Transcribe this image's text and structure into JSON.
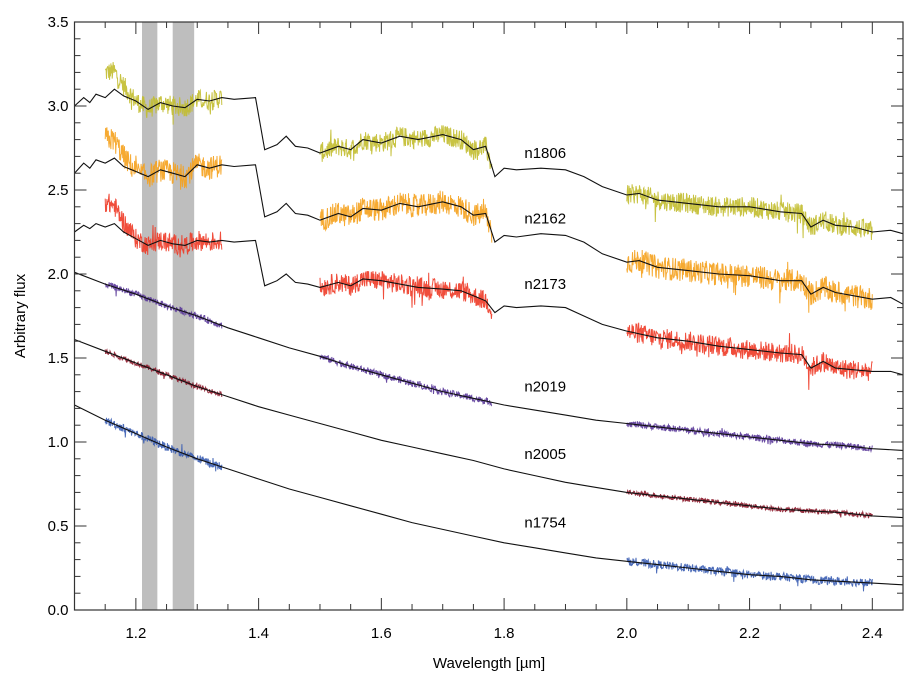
{
  "chart_data": {
    "type": "line",
    "title": "",
    "xlabel": "Wavelength [µm]",
    "ylabel": "Arbitrary flux",
    "xlim": [
      1.1,
      2.45
    ],
    "ylim": [
      0.0,
      3.5
    ],
    "grid": false,
    "legend": "inline-labels",
    "x_ticks": [
      {
        "value": 1.2,
        "label": "1.2"
      },
      {
        "value": 1.4,
        "label": "1.4"
      },
      {
        "value": 1.6,
        "label": "1.6"
      },
      {
        "value": 1.8,
        "label": "1.8"
      },
      {
        "value": 2.0,
        "label": "2.0"
      },
      {
        "value": 2.2,
        "label": "2.2"
      },
      {
        "value": 2.4,
        "label": "2.4"
      }
    ],
    "y_ticks": [
      {
        "value": 0.0,
        "label": "0.0"
      },
      {
        "value": 0.5,
        "label": "0.5"
      },
      {
        "value": 1.0,
        "label": "1.0"
      },
      {
        "value": 1.5,
        "label": "1.5"
      },
      {
        "value": 2.0,
        "label": "2.0"
      },
      {
        "value": 2.5,
        "label": "2.5"
      },
      {
        "value": 3.0,
        "label": "3.0"
      },
      {
        "value": 3.5,
        "label": "3.5"
      }
    ],
    "shaded_regions": [
      {
        "x_range": [
          1.21,
          1.235
        ],
        "color": "#bebebe"
      },
      {
        "x_range": [
          1.26,
          1.295
        ],
        "color": "#bebebe"
      }
    ],
    "series": [
      {
        "name": "n1806",
        "color": "#c2bd2e",
        "label_position": [
          1.82,
          2.72
        ],
        "noise": 0.06,
        "observed_ranges": [
          [
            1.15,
            1.34
          ],
          [
            1.5,
            1.78
          ],
          [
            2.0,
            2.4
          ]
        ],
        "model": [
          [
            1.1,
            3.0
          ],
          [
            1.115,
            3.05
          ],
          [
            1.125,
            3.02
          ],
          [
            1.135,
            3.07
          ],
          [
            1.15,
            3.05
          ],
          [
            1.165,
            3.1
          ],
          [
            1.18,
            3.06
          ],
          [
            1.2,
            3.03
          ],
          [
            1.22,
            2.98
          ],
          [
            1.24,
            3.02
          ],
          [
            1.26,
            3.0
          ],
          [
            1.28,
            2.99
          ],
          [
            1.3,
            3.04
          ],
          [
            1.32,
            3.03
          ],
          [
            1.34,
            3.05
          ],
          [
            1.36,
            3.04
          ],
          [
            1.395,
            3.05
          ],
          [
            1.41,
            2.74
          ],
          [
            1.43,
            2.77
          ],
          [
            1.445,
            2.82
          ],
          [
            1.46,
            2.76
          ],
          [
            1.48,
            2.75
          ],
          [
            1.5,
            2.72
          ],
          [
            1.53,
            2.76
          ],
          [
            1.55,
            2.74
          ],
          [
            1.57,
            2.8
          ],
          [
            1.6,
            2.78
          ],
          [
            1.63,
            2.82
          ],
          [
            1.66,
            2.8
          ],
          [
            1.7,
            2.83
          ],
          [
            1.73,
            2.8
          ],
          [
            1.75,
            2.74
          ],
          [
            1.77,
            2.76
          ],
          [
            1.785,
            2.58
          ],
          [
            1.8,
            2.63
          ],
          [
            1.82,
            2.62
          ],
          [
            1.86,
            2.63
          ],
          [
            1.9,
            2.62
          ],
          [
            1.93,
            2.58
          ],
          [
            1.96,
            2.52
          ],
          [
            2.0,
            2.47
          ],
          [
            2.02,
            2.48
          ],
          [
            2.05,
            2.44
          ],
          [
            2.1,
            2.42
          ],
          [
            2.15,
            2.4
          ],
          [
            2.2,
            2.4
          ],
          [
            2.25,
            2.37
          ],
          [
            2.285,
            2.36
          ],
          [
            2.3,
            2.28
          ],
          [
            2.32,
            2.32
          ],
          [
            2.34,
            2.29
          ],
          [
            2.37,
            2.28
          ],
          [
            2.4,
            2.25
          ],
          [
            2.43,
            2.26
          ],
          [
            2.45,
            2.24
          ]
        ]
      },
      {
        "name": "n2162",
        "color": "#f5a11c",
        "label_position": [
          1.82,
          2.33
        ],
        "noise": 0.07,
        "observed_ranges": [
          [
            1.15,
            1.34
          ],
          [
            1.5,
            1.78
          ],
          [
            2.0,
            2.4
          ]
        ],
        "model": [
          [
            1.1,
            2.6
          ],
          [
            1.115,
            2.66
          ],
          [
            1.125,
            2.63
          ],
          [
            1.135,
            2.68
          ],
          [
            1.15,
            2.66
          ],
          [
            1.165,
            2.69
          ],
          [
            1.18,
            2.64
          ],
          [
            1.2,
            2.61
          ],
          [
            1.22,
            2.58
          ],
          [
            1.24,
            2.62
          ],
          [
            1.26,
            2.6
          ],
          [
            1.28,
            2.58
          ],
          [
            1.3,
            2.65
          ],
          [
            1.32,
            2.63
          ],
          [
            1.34,
            2.65
          ],
          [
            1.36,
            2.64
          ],
          [
            1.395,
            2.65
          ],
          [
            1.41,
            2.34
          ],
          [
            1.43,
            2.37
          ],
          [
            1.445,
            2.42
          ],
          [
            1.46,
            2.36
          ],
          [
            1.48,
            2.35
          ],
          [
            1.5,
            2.32
          ],
          [
            1.53,
            2.36
          ],
          [
            1.55,
            2.34
          ],
          [
            1.57,
            2.39
          ],
          [
            1.6,
            2.38
          ],
          [
            1.63,
            2.42
          ],
          [
            1.66,
            2.4
          ],
          [
            1.7,
            2.43
          ],
          [
            1.73,
            2.4
          ],
          [
            1.75,
            2.35
          ],
          [
            1.77,
            2.36
          ],
          [
            1.785,
            2.19
          ],
          [
            1.8,
            2.23
          ],
          [
            1.82,
            2.22
          ],
          [
            1.86,
            2.24
          ],
          [
            1.9,
            2.23
          ],
          [
            1.93,
            2.19
          ],
          [
            1.96,
            2.12
          ],
          [
            2.0,
            2.07
          ],
          [
            2.02,
            2.08
          ],
          [
            2.05,
            2.04
          ],
          [
            2.1,
            2.02
          ],
          [
            2.15,
            2.0
          ],
          [
            2.2,
            1.99
          ],
          [
            2.25,
            1.96
          ],
          [
            2.285,
            1.96
          ],
          [
            2.3,
            1.88
          ],
          [
            2.32,
            1.92
          ],
          [
            2.34,
            1.89
          ],
          [
            2.37,
            1.87
          ],
          [
            2.4,
            1.85
          ],
          [
            2.43,
            1.86
          ],
          [
            2.45,
            1.82
          ]
        ]
      },
      {
        "name": "n2173",
        "color": "#ee3a26",
        "label_position": [
          1.82,
          1.94
        ],
        "noise": 0.06,
        "observed_ranges": [
          [
            1.15,
            1.34
          ],
          [
            1.5,
            1.78
          ],
          [
            2.0,
            2.4
          ]
        ],
        "model": [
          [
            1.1,
            2.25
          ],
          [
            1.115,
            2.29
          ],
          [
            1.125,
            2.27
          ],
          [
            1.135,
            2.3
          ],
          [
            1.15,
            2.28
          ],
          [
            1.165,
            2.3
          ],
          [
            1.18,
            2.25
          ],
          [
            1.2,
            2.21
          ],
          [
            1.22,
            2.17
          ],
          [
            1.24,
            2.2
          ],
          [
            1.26,
            2.18
          ],
          [
            1.28,
            2.17
          ],
          [
            1.3,
            2.2
          ],
          [
            1.32,
            2.19
          ],
          [
            1.34,
            2.2
          ],
          [
            1.36,
            2.19
          ],
          [
            1.395,
            2.2
          ],
          [
            1.41,
            1.93
          ],
          [
            1.43,
            1.96
          ],
          [
            1.445,
            2.0
          ],
          [
            1.46,
            1.95
          ],
          [
            1.48,
            1.94
          ],
          [
            1.5,
            1.92
          ],
          [
            1.53,
            1.95
          ],
          [
            1.55,
            1.93
          ],
          [
            1.57,
            1.97
          ],
          [
            1.6,
            1.96
          ],
          [
            1.63,
            1.94
          ],
          [
            1.66,
            1.92
          ],
          [
            1.7,
            1.91
          ],
          [
            1.73,
            1.9
          ],
          [
            1.75,
            1.87
          ],
          [
            1.77,
            1.84
          ],
          [
            1.785,
            1.77
          ],
          [
            1.8,
            1.81
          ],
          [
            1.82,
            1.8
          ],
          [
            1.86,
            1.81
          ],
          [
            1.9,
            1.8
          ],
          [
            1.93,
            1.75
          ],
          [
            1.96,
            1.7
          ],
          [
            2.0,
            1.66
          ],
          [
            2.05,
            1.62
          ],
          [
            2.1,
            1.6
          ],
          [
            2.15,
            1.57
          ],
          [
            2.2,
            1.55
          ],
          [
            2.25,
            1.53
          ],
          [
            2.285,
            1.52
          ],
          [
            2.3,
            1.44
          ],
          [
            2.32,
            1.48
          ],
          [
            2.34,
            1.44
          ],
          [
            2.37,
            1.43
          ],
          [
            2.4,
            1.42
          ],
          [
            2.43,
            1.42
          ],
          [
            2.45,
            1.4
          ]
        ]
      },
      {
        "name": "n2019",
        "color": "#5a3899",
        "label_position": [
          1.82,
          1.33
        ],
        "noise": 0.02,
        "observed_ranges": [
          [
            1.15,
            1.34
          ],
          [
            1.5,
            1.78
          ],
          [
            2.0,
            2.4
          ]
        ],
        "model": [
          [
            1.1,
            2.01
          ],
          [
            1.15,
            1.94
          ],
          [
            1.2,
            1.88
          ],
          [
            1.25,
            1.81
          ],
          [
            1.3,
            1.75
          ],
          [
            1.35,
            1.68
          ],
          [
            1.4,
            1.62
          ],
          [
            1.45,
            1.56
          ],
          [
            1.5,
            1.51
          ],
          [
            1.55,
            1.45
          ],
          [
            1.6,
            1.4
          ],
          [
            1.65,
            1.35
          ],
          [
            1.7,
            1.3
          ],
          [
            1.75,
            1.26
          ],
          [
            1.8,
            1.22
          ],
          [
            1.85,
            1.19
          ],
          [
            1.9,
            1.16
          ],
          [
            1.95,
            1.13
          ],
          [
            2.0,
            1.11
          ],
          [
            2.05,
            1.09
          ],
          [
            2.1,
            1.07
          ],
          [
            2.15,
            1.05
          ],
          [
            2.2,
            1.03
          ],
          [
            2.25,
            1.01
          ],
          [
            2.3,
            0.99
          ],
          [
            2.35,
            0.98
          ],
          [
            2.4,
            0.96
          ],
          [
            2.45,
            0.95
          ]
        ]
      },
      {
        "name": "n2005",
        "color": "#8c1a2b",
        "label_position": [
          1.82,
          0.93
        ],
        "noise": 0.015,
        "observed_ranges": [
          [
            1.15,
            1.34
          ],
          [
            2.0,
            2.4
          ]
        ],
        "model": [
          [
            1.1,
            1.61
          ],
          [
            1.15,
            1.54
          ],
          [
            1.2,
            1.47
          ],
          [
            1.25,
            1.4
          ],
          [
            1.3,
            1.33
          ],
          [
            1.35,
            1.27
          ],
          [
            1.4,
            1.21
          ],
          [
            1.45,
            1.16
          ],
          [
            1.5,
            1.11
          ],
          [
            1.55,
            1.06
          ],
          [
            1.6,
            1.01
          ],
          [
            1.65,
            0.97
          ],
          [
            1.7,
            0.93
          ],
          [
            1.75,
            0.89
          ],
          [
            1.8,
            0.84
          ],
          [
            1.85,
            0.8
          ],
          [
            1.9,
            0.76
          ],
          [
            1.95,
            0.73
          ],
          [
            2.0,
            0.7
          ],
          [
            2.05,
            0.68
          ],
          [
            2.1,
            0.66
          ],
          [
            2.15,
            0.64
          ],
          [
            2.2,
            0.62
          ],
          [
            2.25,
            0.6
          ],
          [
            2.3,
            0.59
          ],
          [
            2.35,
            0.58
          ],
          [
            2.4,
            0.56
          ],
          [
            2.45,
            0.55
          ]
        ]
      },
      {
        "name": "n1754",
        "color": "#3a5db2",
        "label_position": [
          1.82,
          0.52
        ],
        "noise": 0.025,
        "observed_ranges": [
          [
            1.15,
            1.34
          ],
          [
            2.0,
            2.4
          ]
        ],
        "model": [
          [
            1.1,
            1.22
          ],
          [
            1.15,
            1.13
          ],
          [
            1.2,
            1.05
          ],
          [
            1.25,
            0.97
          ],
          [
            1.3,
            0.9
          ],
          [
            1.35,
            0.84
          ],
          [
            1.4,
            0.78
          ],
          [
            1.45,
            0.72
          ],
          [
            1.5,
            0.67
          ],
          [
            1.55,
            0.62
          ],
          [
            1.6,
            0.57
          ],
          [
            1.65,
            0.52
          ],
          [
            1.7,
            0.48
          ],
          [
            1.75,
            0.44
          ],
          [
            1.8,
            0.4
          ],
          [
            1.85,
            0.37
          ],
          [
            1.9,
            0.34
          ],
          [
            1.95,
            0.31
          ],
          [
            2.0,
            0.29
          ],
          [
            2.05,
            0.27
          ],
          [
            2.1,
            0.25
          ],
          [
            2.15,
            0.23
          ],
          [
            2.2,
            0.21
          ],
          [
            2.25,
            0.2
          ],
          [
            2.3,
            0.18
          ],
          [
            2.35,
            0.17
          ],
          [
            2.4,
            0.16
          ],
          [
            2.45,
            0.15
          ]
        ]
      }
    ]
  }
}
